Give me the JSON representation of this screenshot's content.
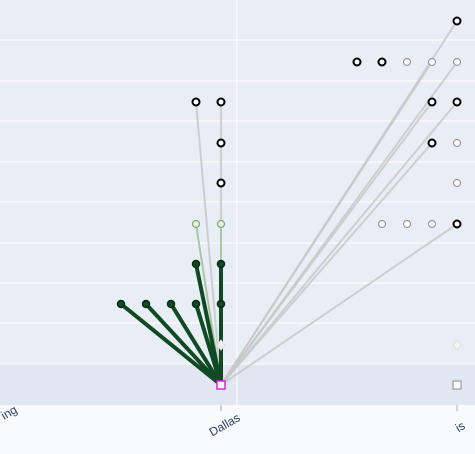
{
  "x_labels": [
    "ing",
    "Dallas",
    "is"
  ]
}
